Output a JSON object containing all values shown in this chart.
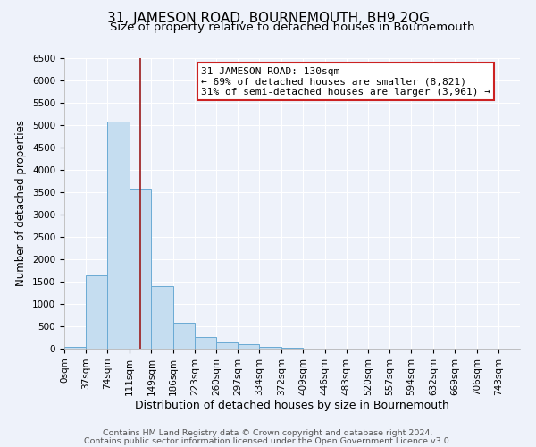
{
  "title": "31, JAMESON ROAD, BOURNEMOUTH, BH9 2QG",
  "subtitle": "Size of property relative to detached houses in Bournemouth",
  "xlabel": "Distribution of detached houses by size in Bournemouth",
  "ylabel": "Number of detached properties",
  "footer_lines": [
    "Contains HM Land Registry data © Crown copyright and database right 2024.",
    "Contains public sector information licensed under the Open Government Licence v3.0."
  ],
  "bin_labels": [
    "0sqm",
    "37sqm",
    "74sqm",
    "111sqm",
    "149sqm",
    "186sqm",
    "223sqm",
    "260sqm",
    "297sqm",
    "334sqm",
    "372sqm",
    "409sqm",
    "446sqm",
    "483sqm",
    "520sqm",
    "557sqm",
    "594sqm",
    "632sqm",
    "669sqm",
    "706sqm",
    "743sqm"
  ],
  "bin_edges": [
    0,
    37,
    74,
    111,
    149,
    186,
    223,
    260,
    297,
    334,
    372,
    409,
    446,
    483,
    520,
    557,
    594,
    632,
    669,
    706,
    743
  ],
  "bar_values": [
    50,
    1650,
    5080,
    3580,
    1400,
    575,
    270,
    145,
    100,
    50,
    30,
    0,
    0,
    0,
    0,
    0,
    0,
    0,
    0,
    0
  ],
  "bar_color": "#c5ddf0",
  "bar_edge_color": "#6aaad4",
  "property_line_x": 130,
  "property_line_color": "#9b1b1b",
  "annotation_title": "31 JAMESON ROAD: 130sqm",
  "annotation_line1": "← 69% of detached houses are smaller (8,821)",
  "annotation_line2": "31% of semi-detached houses are larger (3,961) →",
  "annotation_box_color": "#ffffff",
  "annotation_box_edge": "#cc2222",
  "ylim": [
    0,
    6500
  ],
  "yticks": [
    0,
    500,
    1000,
    1500,
    2000,
    2500,
    3000,
    3500,
    4000,
    4500,
    5000,
    5500,
    6000,
    6500
  ],
  "background_color": "#eef2fa",
  "grid_color": "#ffffff",
  "title_fontsize": 11,
  "subtitle_fontsize": 9.5,
  "xlabel_fontsize": 9,
  "ylabel_fontsize": 8.5,
  "tick_fontsize": 7.5,
  "annotation_fontsize": 8,
  "footer_fontsize": 6.8
}
